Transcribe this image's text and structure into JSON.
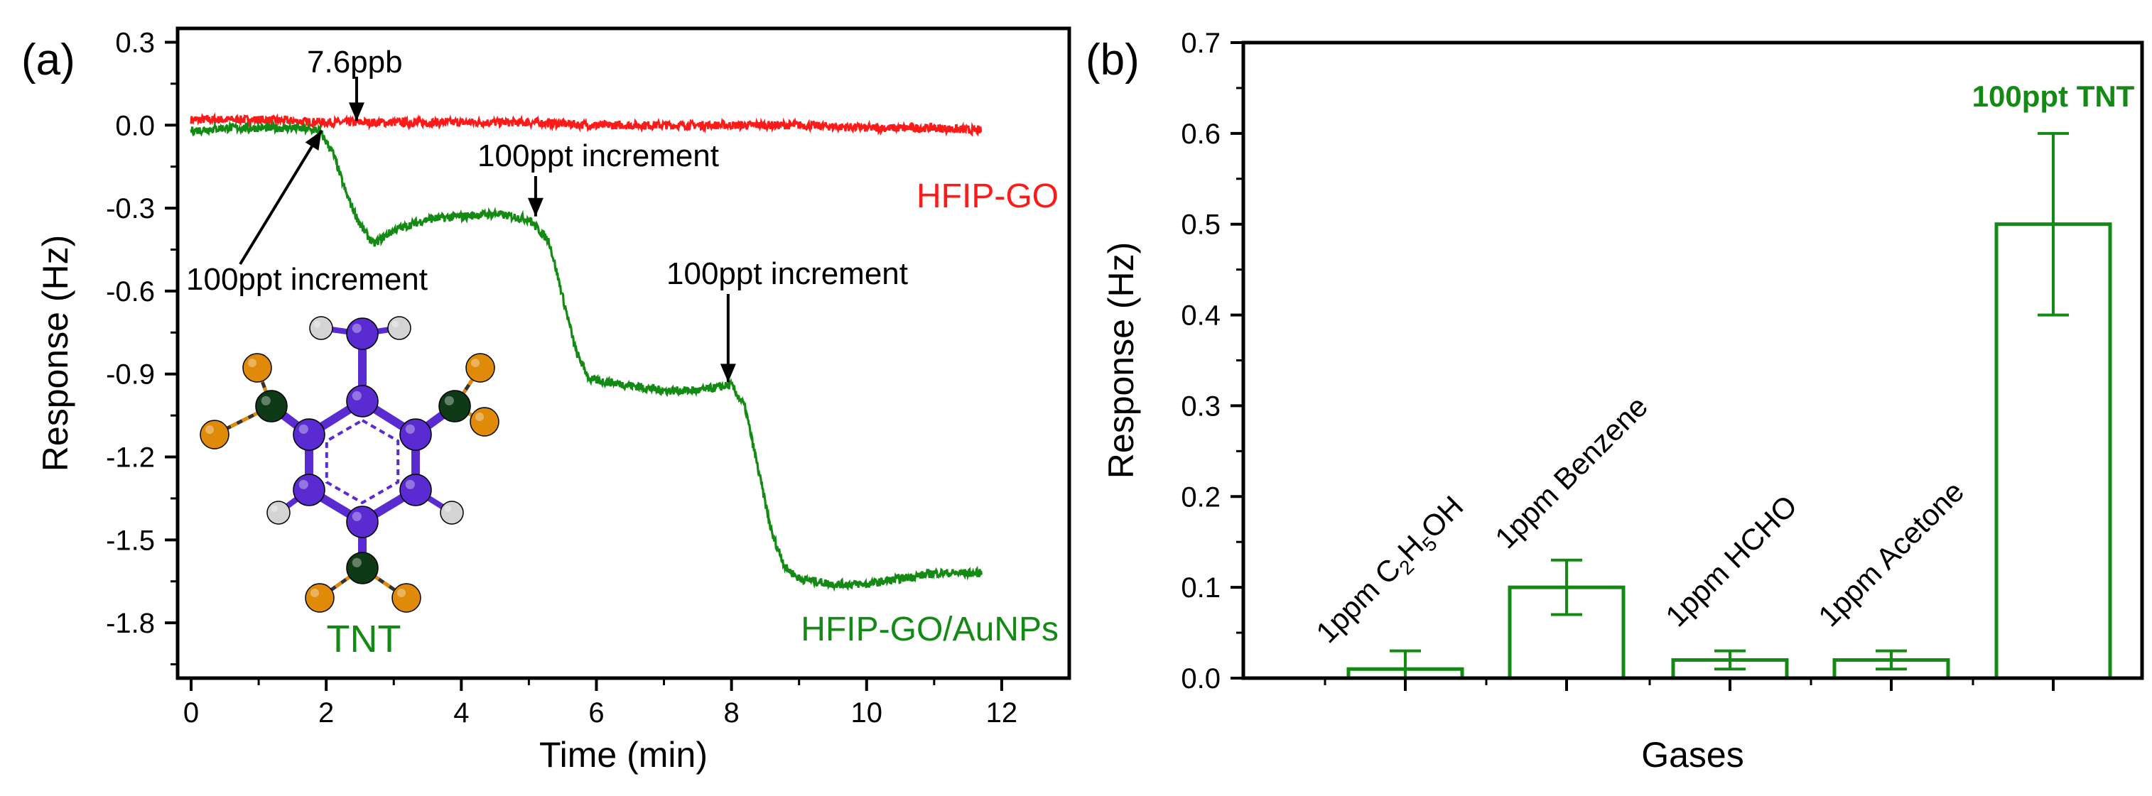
{
  "colors": {
    "red": "#ff1a1a",
    "green": "#138a13",
    "black": "#000000",
    "purple": "#5a2bd0",
    "dark_green_atom": "#0e3b16",
    "orange": "#e08a0a",
    "grey": "#d4d4d4"
  },
  "panel_a": {
    "panel_label": "(a)",
    "inset": {
      "label": "TNT",
      "icon": "tnt-molecule-icon"
    },
    "annotations": {
      "ppb_label": "7.6ppb",
      "increment_1": "100ppt increment",
      "increment_2": "100ppt increment",
      "increment_3": "100ppt increment"
    }
  },
  "panel_b": {
    "panel_label": "(b)"
  },
  "chart_data": [
    {
      "type": "line",
      "title": "",
      "xlabel": "Time (min)",
      "ylabel": "Response (Hz)",
      "xlim": [
        -0.2,
        13
      ],
      "ylim": [
        -2.0,
        0.35
      ],
      "xticks": [
        0,
        2,
        4,
        6,
        8,
        10,
        12
      ],
      "xtick_labels": [
        "0",
        "2",
        "4",
        "6",
        "8",
        "10",
        "12"
      ],
      "yticks": [
        0.3,
        0.0,
        -0.3,
        -0.6,
        -0.9,
        -1.2,
        -1.5,
        -1.8
      ],
      "ytick_labels": [
        "0.3",
        "0.0",
        "-0.3",
        "-0.6",
        "-0.9",
        "-1.2",
        "-1.5",
        "-1.8"
      ],
      "series": [
        {
          "name": "HFIP-GO",
          "color": "#ff1a1a",
          "x": [
            0,
            1,
            2,
            3,
            4,
            5,
            6,
            7,
            8,
            9,
            10,
            11,
            11.7
          ],
          "y": [
            0.02,
            0.02,
            0.01,
            0.01,
            0.01,
            0.01,
            0.0,
            0.0,
            0.0,
            0.0,
            -0.01,
            -0.01,
            -0.02
          ]
        },
        {
          "name": "HFIP-GO/AuNPs",
          "color": "#138a13",
          "x": [
            0,
            0.5,
            1.0,
            1.5,
            1.9,
            2.1,
            2.3,
            2.5,
            2.7,
            3.0,
            3.5,
            4.0,
            4.5,
            5.0,
            5.3,
            5.5,
            5.7,
            5.9,
            6.2,
            7.0,
            7.5,
            8.0,
            8.2,
            8.4,
            8.6,
            8.8,
            9.0,
            9.5,
            10.0,
            10.5,
            11.0,
            11.7
          ],
          "y": [
            -0.02,
            -0.01,
            -0.01,
            -0.01,
            -0.02,
            -0.1,
            -0.25,
            -0.36,
            -0.43,
            -0.38,
            -0.34,
            -0.33,
            -0.32,
            -0.34,
            -0.42,
            -0.62,
            -0.82,
            -0.92,
            -0.93,
            -0.96,
            -0.96,
            -0.94,
            -1.02,
            -1.25,
            -1.48,
            -1.6,
            -1.64,
            -1.66,
            -1.66,
            -1.64,
            -1.62,
            -1.62
          ]
        }
      ],
      "legend": [
        "HFIP-GO",
        "HFIP-GO/AuNPs"
      ]
    },
    {
      "type": "bar",
      "title": "",
      "xlabel": "Gases",
      "ylabel": "Response (Hz)",
      "ylim": [
        0,
        0.7
      ],
      "yticks": [
        0.0,
        0.1,
        0.2,
        0.3,
        0.4,
        0.5,
        0.6,
        0.7
      ],
      "ytick_labels": [
        "0.0",
        "0.1",
        "0.2",
        "0.3",
        "0.4",
        "0.5",
        "0.6",
        "0.7"
      ],
      "categories": [
        "1ppm C2H5OH",
        "1ppm Benzene",
        "1ppm HCHO",
        "1ppm Acetone",
        "100ppt TNT"
      ],
      "values": [
        0.01,
        0.1,
        0.02,
        0.02,
        0.5
      ],
      "errors": [
        0.02,
        0.03,
        0.01,
        0.01,
        0.1
      ],
      "bar_color": "#138a13",
      "category_label_parts": [
        {
          "pre": "1ppm C",
          "sub1": "2",
          "mid": "H",
          "sub2": "5",
          "post": "OH"
        },
        {
          "text": "1ppm Benzene"
        },
        {
          "text": "1ppm HCHO"
        },
        {
          "text": "1ppm Acetone"
        },
        {
          "text": "100ppt TNT"
        }
      ]
    }
  ]
}
